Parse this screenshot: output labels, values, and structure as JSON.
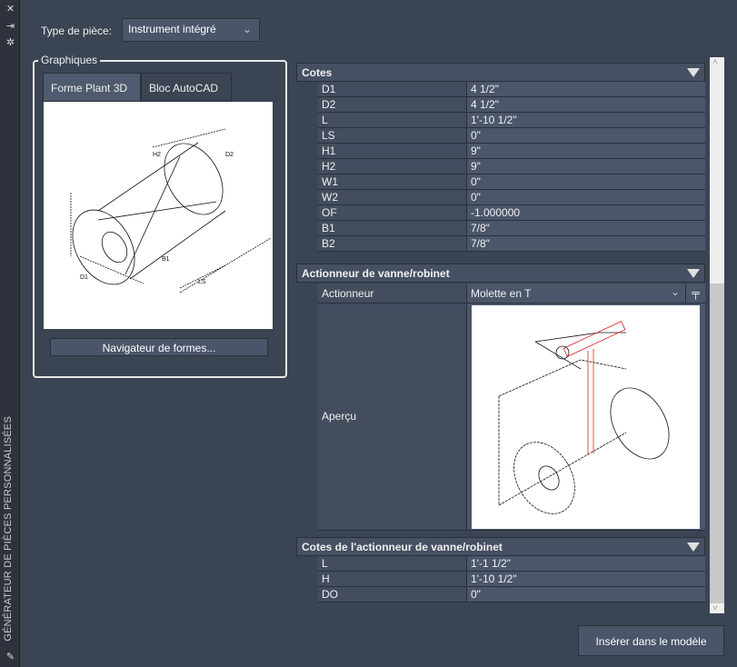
{
  "sidebar": {
    "title": "GÉNÉRATEUR DE PIÈCES PERSONNALISÉES",
    "icons": [
      "close-icon",
      "pin-icon",
      "settings-icon",
      "part-builder-icon"
    ]
  },
  "part_type": {
    "label": "Type de pièce:",
    "value": "Instrument intégré"
  },
  "graphics": {
    "title": "Graphiques",
    "tabs": [
      "Forme Plant 3D",
      "Bloc AutoCAD"
    ],
    "active_tab": 0,
    "browse_button": "Navigateur de formes..."
  },
  "dimensions": {
    "title": "Cotes",
    "rows": [
      {
        "k": "D1",
        "v": "4 1/2\""
      },
      {
        "k": "D2",
        "v": "4 1/2\""
      },
      {
        "k": "L",
        "v": "1'-10 1/2\""
      },
      {
        "k": "LS",
        "v": "0\""
      },
      {
        "k": "H1",
        "v": "9\""
      },
      {
        "k": "H2",
        "v": "9\""
      },
      {
        "k": "W1",
        "v": "0\""
      },
      {
        "k": "W2",
        "v": "0\""
      },
      {
        "k": "OF",
        "v": "-1.000000"
      },
      {
        "k": "B1",
        "v": "7/8\""
      },
      {
        "k": "B2",
        "v": "7/8\""
      }
    ]
  },
  "actuator": {
    "title": "Actionneur de vanne/robinet",
    "label": "Actionneur",
    "value": "Molette en T",
    "preview_label": "Aperçu"
  },
  "actuator_dims": {
    "title": "Cotes de l'actionneur de vanne/robinet",
    "rows": [
      {
        "k": "L",
        "v": "1'-1 1/2\""
      },
      {
        "k": "H",
        "v": "1'-10 1/2\""
      },
      {
        "k": "DO",
        "v": "0\""
      }
    ]
  },
  "insert_button": "Insérer dans le modèle",
  "colors": {
    "background": "#3b4453",
    "accent_highlight": "#e02020"
  }
}
